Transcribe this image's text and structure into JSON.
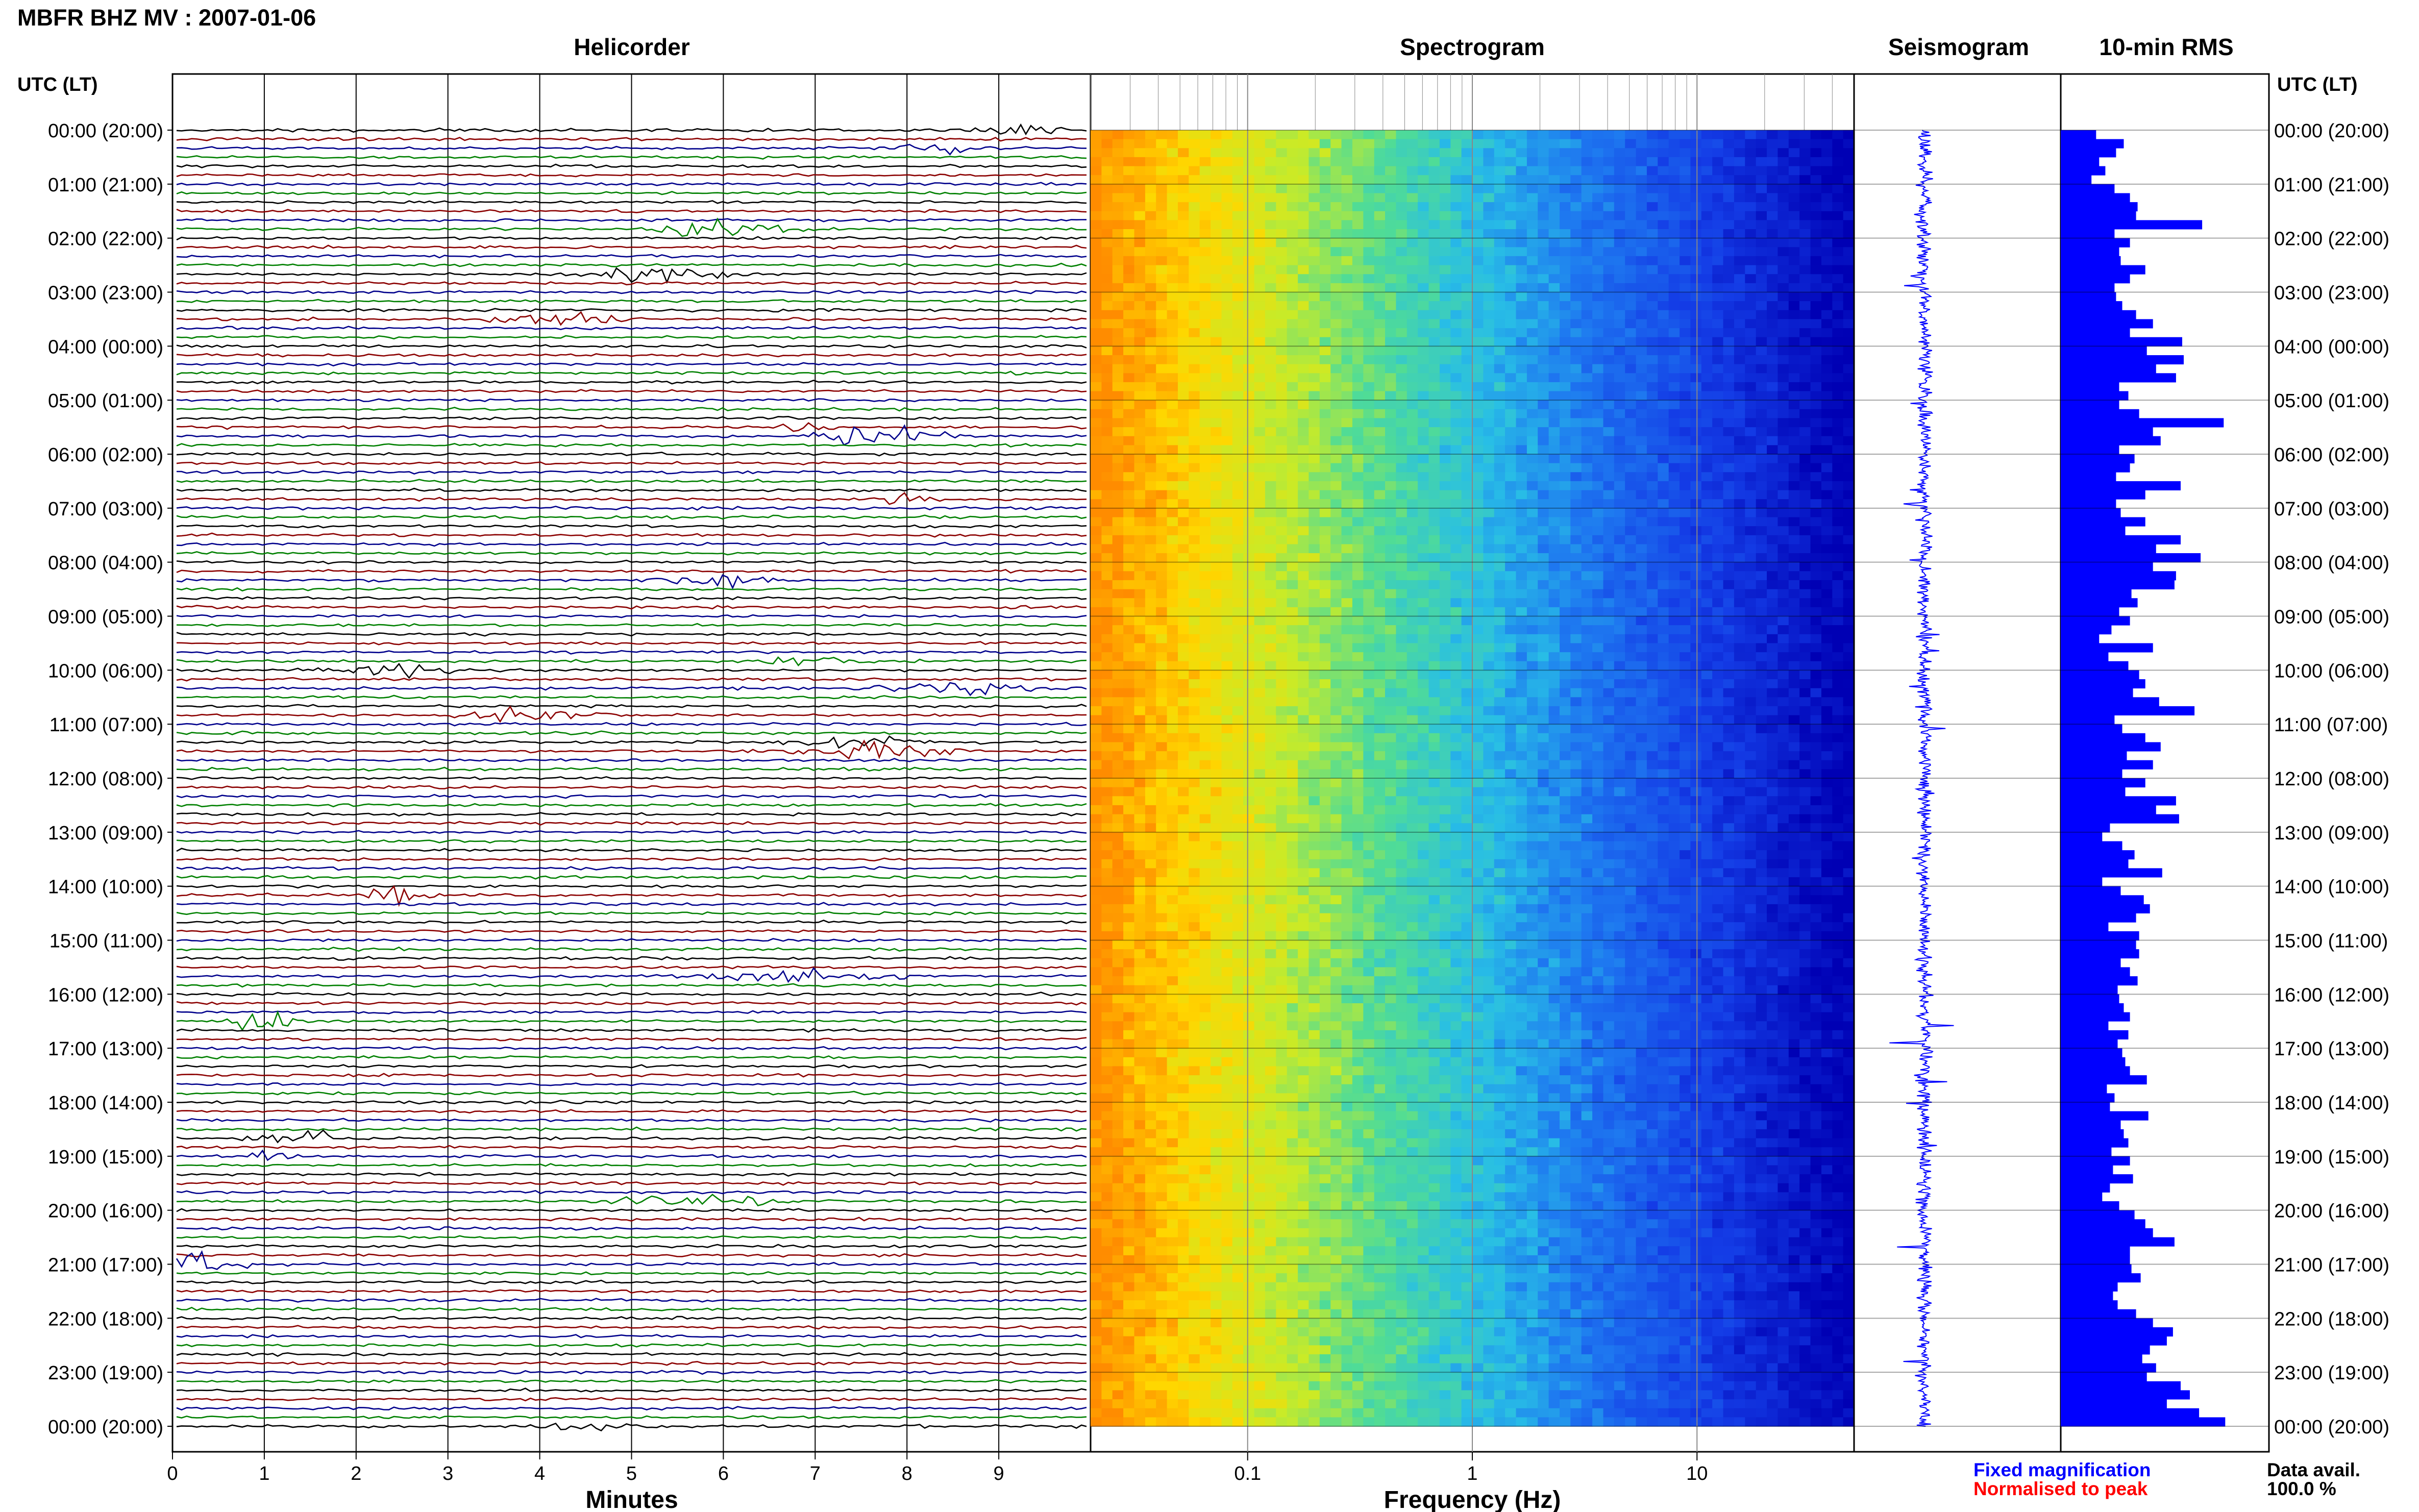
{
  "title": "MBFR BHZ MV : 2007-01-06",
  "panels": {
    "helicorder": "Helicorder",
    "spectrogram": "Spectrogram",
    "seismogram": "Seismogram",
    "rms": "10-min RMS"
  },
  "time_axis_label": "UTC (LT)",
  "legend": {
    "fixed": "Fixed magnification",
    "normalised": "Normalised to peak",
    "fixed_color": "#0000ff",
    "normalised_color": "#ff0000"
  },
  "data_avail": {
    "label": "Data avail.",
    "value": "100.0 %"
  },
  "colors": {
    "trace_cycle": [
      "#000000",
      "#8b0000",
      "#00008b",
      "#008000"
    ],
    "spectro_low": "#ff8c00",
    "spectro_high": "#0000c8",
    "seismo": "#0000ff",
    "rms_bar": "#0000ff"
  },
  "chart_data": [
    {
      "type": "line",
      "panel": "helicorder",
      "xlabel": "Minutes",
      "x_ticks": [
        "0",
        "1",
        "2",
        "3",
        "4",
        "5",
        "6",
        "7",
        "8",
        "9"
      ],
      "xlim": [
        0,
        10
      ],
      "rows_per_hour": 6,
      "hour_labels": [
        "00:00 (20:00)",
        "01:00 (21:00)",
        "02:00 (22:00)",
        "03:00 (23:00)",
        "04:00 (00:00)",
        "05:00 (01:00)",
        "06:00 (02:00)",
        "07:00 (03:00)",
        "08:00 (04:00)",
        "09:00 (05:00)",
        "10:00 (06:00)",
        "11:00 (07:00)",
        "12:00 (08:00)",
        "13:00 (09:00)",
        "14:00 (10:00)",
        "15:00 (11:00)",
        "16:00 (12:00)",
        "17:00 (13:00)",
        "18:00 (14:00)",
        "19:00 (15:00)",
        "20:00 (16:00)",
        "21:00 (17:00)",
        "22:00 (18:00)",
        "23:00 (19:00)",
        "00:00 (20:00)"
      ]
    },
    {
      "type": "heatmap",
      "panel": "spectrogram",
      "xlabel": "Frequency (Hz)",
      "x_scale": "log",
      "xlim": [
        0.02,
        50
      ],
      "x_ticks": [
        "0.1",
        "1",
        "10"
      ]
    },
    {
      "type": "line",
      "panel": "seismogram"
    },
    {
      "type": "bar",
      "panel": "rms",
      "orientation": "horizontal",
      "units": "relative",
      "values": [
        0.23,
        0.41,
        0.36,
        0.25,
        0.29,
        0.2,
        0.35,
        0.45,
        0.5,
        0.49,
        0.92,
        0.35,
        0.45,
        0.38,
        0.39,
        0.55,
        0.45,
        0.35,
        0.36,
        0.4,
        0.49,
        0.6,
        0.45,
        0.79,
        0.56,
        0.8,
        0.62,
        0.75,
        0.38,
        0.44,
        0.38,
        0.51,
        1.06,
        0.6,
        0.65,
        0.38,
        0.48,
        0.45,
        0.36,
        0.78,
        0.55,
        0.36,
        0.39,
        0.55,
        0.42,
        0.78,
        0.62,
        0.91,
        0.6,
        0.75,
        0.74,
        0.46,
        0.5,
        0.38,
        0.45,
        0.33,
        0.25,
        0.6,
        0.31,
        0.44,
        0.51,
        0.55,
        0.47,
        0.64,
        0.87,
        0.35,
        0.4,
        0.55,
        0.65,
        0.43,
        0.6,
        0.4,
        0.55,
        0.42,
        0.75,
        0.62,
        0.77,
        0.32,
        0.27,
        0.4,
        0.48,
        0.44,
        0.66,
        0.27,
        0.39,
        0.54,
        0.58,
        0.49,
        0.31,
        0.51,
        0.49,
        0.51,
        0.39,
        0.45,
        0.5,
        0.37,
        0.38,
        0.41,
        0.45,
        0.31,
        0.44,
        0.37,
        0.4,
        0.42,
        0.45,
        0.56,
        0.3,
        0.35,
        0.32,
        0.57,
        0.39,
        0.41,
        0.44,
        0.33,
        0.45,
        0.34,
        0.47,
        0.32,
        0.27,
        0.38,
        0.48,
        0.55,
        0.6,
        0.74,
        0.45,
        0.45,
        0.46,
        0.52,
        0.37,
        0.34,
        0.37,
        0.49,
        0.6,
        0.73,
        0.69,
        0.58,
        0.53,
        0.62,
        0.56,
        0.78,
        0.84,
        0.69,
        0.9,
        1.07
      ]
    }
  ]
}
